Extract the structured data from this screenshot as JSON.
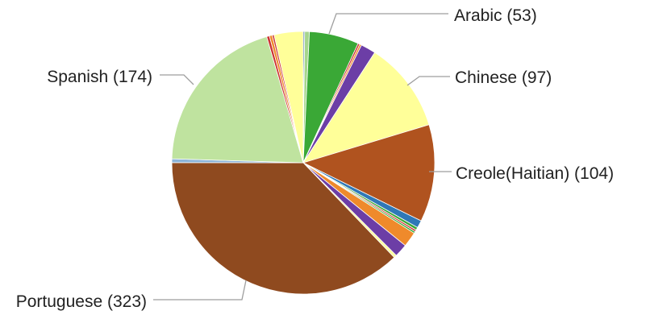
{
  "chart_data": {
    "type": "pie",
    "title": "",
    "labeled_slices": [
      {
        "label": "Arabic (53)",
        "name": "Arabic",
        "value": 53
      },
      {
        "label": "Chinese (97)",
        "name": "Chinese",
        "value": 97
      },
      {
        "label": "Creole(Haitian) (104)",
        "name": "Creole(Haitian)",
        "value": 104
      },
      {
        "label": "Portuguese (323)",
        "name": "Portuguese",
        "value": 323
      },
      {
        "label": "Spanish (174)",
        "name": "Spanish",
        "value": 174
      }
    ],
    "slices": [
      {
        "value": 1.5,
        "color": "#3f6fa8"
      },
      {
        "value": 5,
        "color": "#a6d58c"
      },
      {
        "value": 53,
        "color": "#3aa836"
      },
      {
        "value": 2,
        "color": "#cc3333"
      },
      {
        "value": 2,
        "color": "#ef8a2b"
      },
      {
        "value": 16,
        "color": "#6c3ea6"
      },
      {
        "value": 97,
        "color": "#ffff99"
      },
      {
        "value": 104,
        "color": "#b0531f"
      },
      {
        "value": 8,
        "color": "#2f78b7"
      },
      {
        "value": 3,
        "color": "#3aa836"
      },
      {
        "value": 2,
        "color": "#cc3333"
      },
      {
        "value": 2,
        "color": "#3aa836"
      },
      {
        "value": 16,
        "color": "#ef8a2b"
      },
      {
        "value": 14,
        "color": "#6c3ea6"
      },
      {
        "value": 3,
        "color": "#ffff99"
      },
      {
        "value": 323,
        "color": "#8f4a1f"
      },
      {
        "value": 4,
        "color": "#8cb4d8"
      },
      {
        "value": 174,
        "color": "#bfe39f"
      },
      {
        "value": 3,
        "color": "#cc3333"
      },
      {
        "value": 3,
        "color": "#ef8a2b"
      },
      {
        "value": 2,
        "color": "#cc3333"
      },
      {
        "value": 31,
        "color": "#ffff99"
      }
    ],
    "legend": "none"
  }
}
